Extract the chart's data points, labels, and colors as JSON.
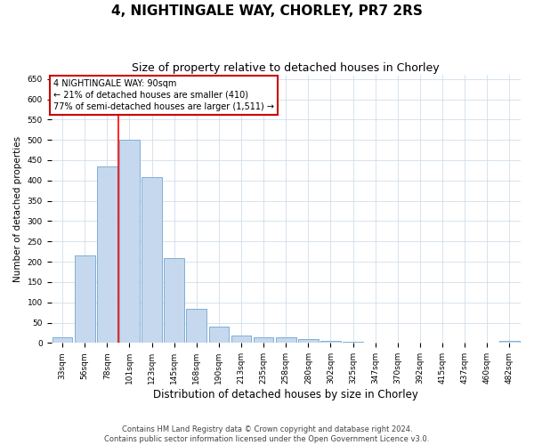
{
  "title": "4, NIGHTINGALE WAY, CHORLEY, PR7 2RS",
  "subtitle": "Size of property relative to detached houses in Chorley",
  "xlabel": "Distribution of detached houses by size in Chorley",
  "ylabel": "Number of detached properties",
  "categories": [
    "33sqm",
    "56sqm",
    "78sqm",
    "101sqm",
    "123sqm",
    "145sqm",
    "168sqm",
    "190sqm",
    "213sqm",
    "235sqm",
    "258sqm",
    "280sqm",
    "302sqm",
    "325sqm",
    "347sqm",
    "370sqm",
    "392sqm",
    "415sqm",
    "437sqm",
    "460sqm",
    "482sqm"
  ],
  "values": [
    15,
    215,
    435,
    500,
    408,
    208,
    83,
    40,
    18,
    15,
    15,
    10,
    5,
    2,
    1,
    1,
    1,
    1,
    1,
    1,
    5
  ],
  "bar_color": "#c5d8ed",
  "bar_edge_color": "#7fafd4",
  "redline_label": "4 NIGHTINGALE WAY: 90sqm",
  "redline_line1": "← 21% of detached houses are smaller (410)",
  "redline_line2": "77% of semi-detached houses are larger (1,511) →",
  "annotation_box_color": "#cc0000",
  "ylim": [
    0,
    660
  ],
  "yticks": [
    0,
    50,
    100,
    150,
    200,
    250,
    300,
    350,
    400,
    450,
    500,
    550,
    600,
    650
  ],
  "bg_color": "#ffffff",
  "grid_color": "#c8d8e8",
  "footer_line1": "Contains HM Land Registry data © Crown copyright and database right 2024.",
  "footer_line2": "Contains public sector information licensed under the Open Government Licence v3.0.",
  "title_fontsize": 11,
  "subtitle_fontsize": 9,
  "xlabel_fontsize": 8.5,
  "ylabel_fontsize": 7.5,
  "tick_fontsize": 6.5,
  "footer_fontsize": 6,
  "annot_fontsize": 7
}
